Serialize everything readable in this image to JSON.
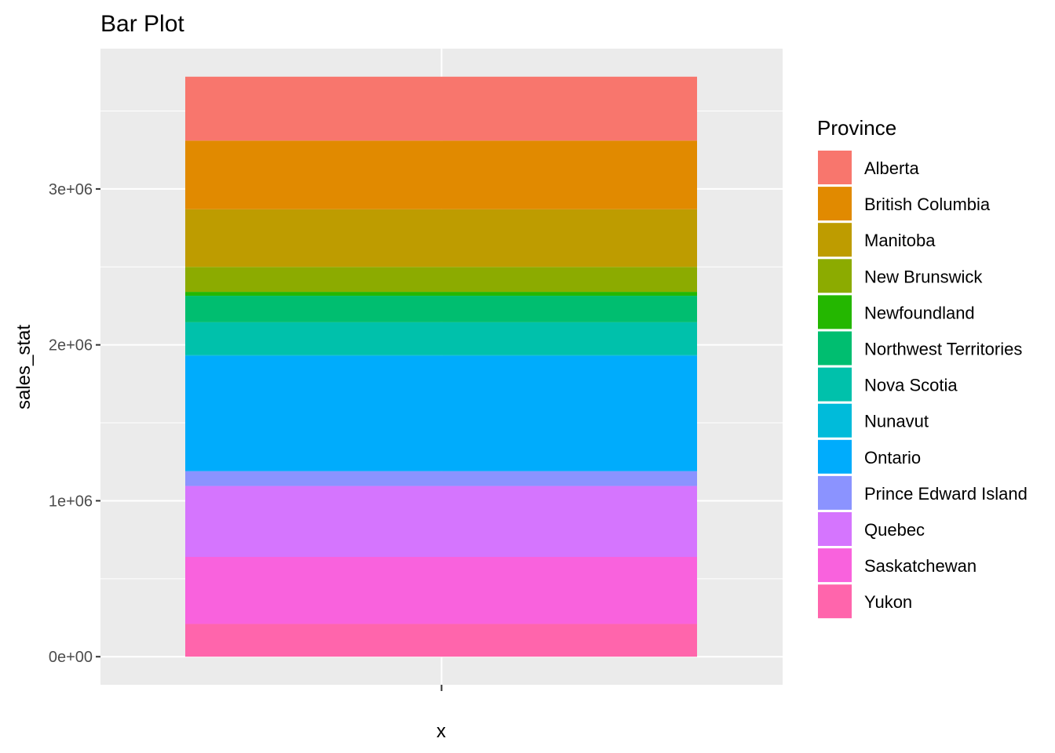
{
  "chart_data": {
    "type": "bar",
    "stacked": true,
    "title": "Bar Plot",
    "xlabel": "x",
    "ylabel": "sales_stat",
    "categories": [
      ""
    ],
    "ylim": [
      -180000,
      3900000
    ],
    "yticks": [
      0,
      1000000,
      2000000,
      3000000
    ],
    "ytick_labels": [
      "0e+00",
      "1e+06",
      "2e+06",
      "3e+06"
    ],
    "grid": true,
    "legend_title": "Province",
    "legend_position": "right",
    "series": [
      {
        "name": "Alberta",
        "values": [
          410000
        ],
        "color": "#F8766D"
      },
      {
        "name": "British Columbia",
        "values": [
          440000
        ],
        "color": "#E18A00"
      },
      {
        "name": "Manitoba",
        "values": [
          370000
        ],
        "color": "#BE9C00"
      },
      {
        "name": "New Brunswick",
        "values": [
          160000
        ],
        "color": "#8CAB00"
      },
      {
        "name": "Newfoundland",
        "values": [
          25000
        ],
        "color": "#24B700"
      },
      {
        "name": "Northwest Territories",
        "values": [
          170000
        ],
        "color": "#00BE70"
      },
      {
        "name": "Nova Scotia",
        "values": [
          210000
        ],
        "color": "#00C1AB"
      },
      {
        "name": "Nunavut",
        "values": [
          5000
        ],
        "color": "#00BBDA"
      },
      {
        "name": "Ontario",
        "values": [
          740000
        ],
        "color": "#00ACFC"
      },
      {
        "name": "Prince Edward Island",
        "values": [
          95000
        ],
        "color": "#8B93FF"
      },
      {
        "name": "Quebec",
        "values": [
          455000
        ],
        "color": "#D575FE"
      },
      {
        "name": "Saskatchewan",
        "values": [
          430000
        ],
        "color": "#F962DD"
      },
      {
        "name": "Yukon",
        "values": [
          210000
        ],
        "color": "#FF65AC"
      }
    ]
  }
}
